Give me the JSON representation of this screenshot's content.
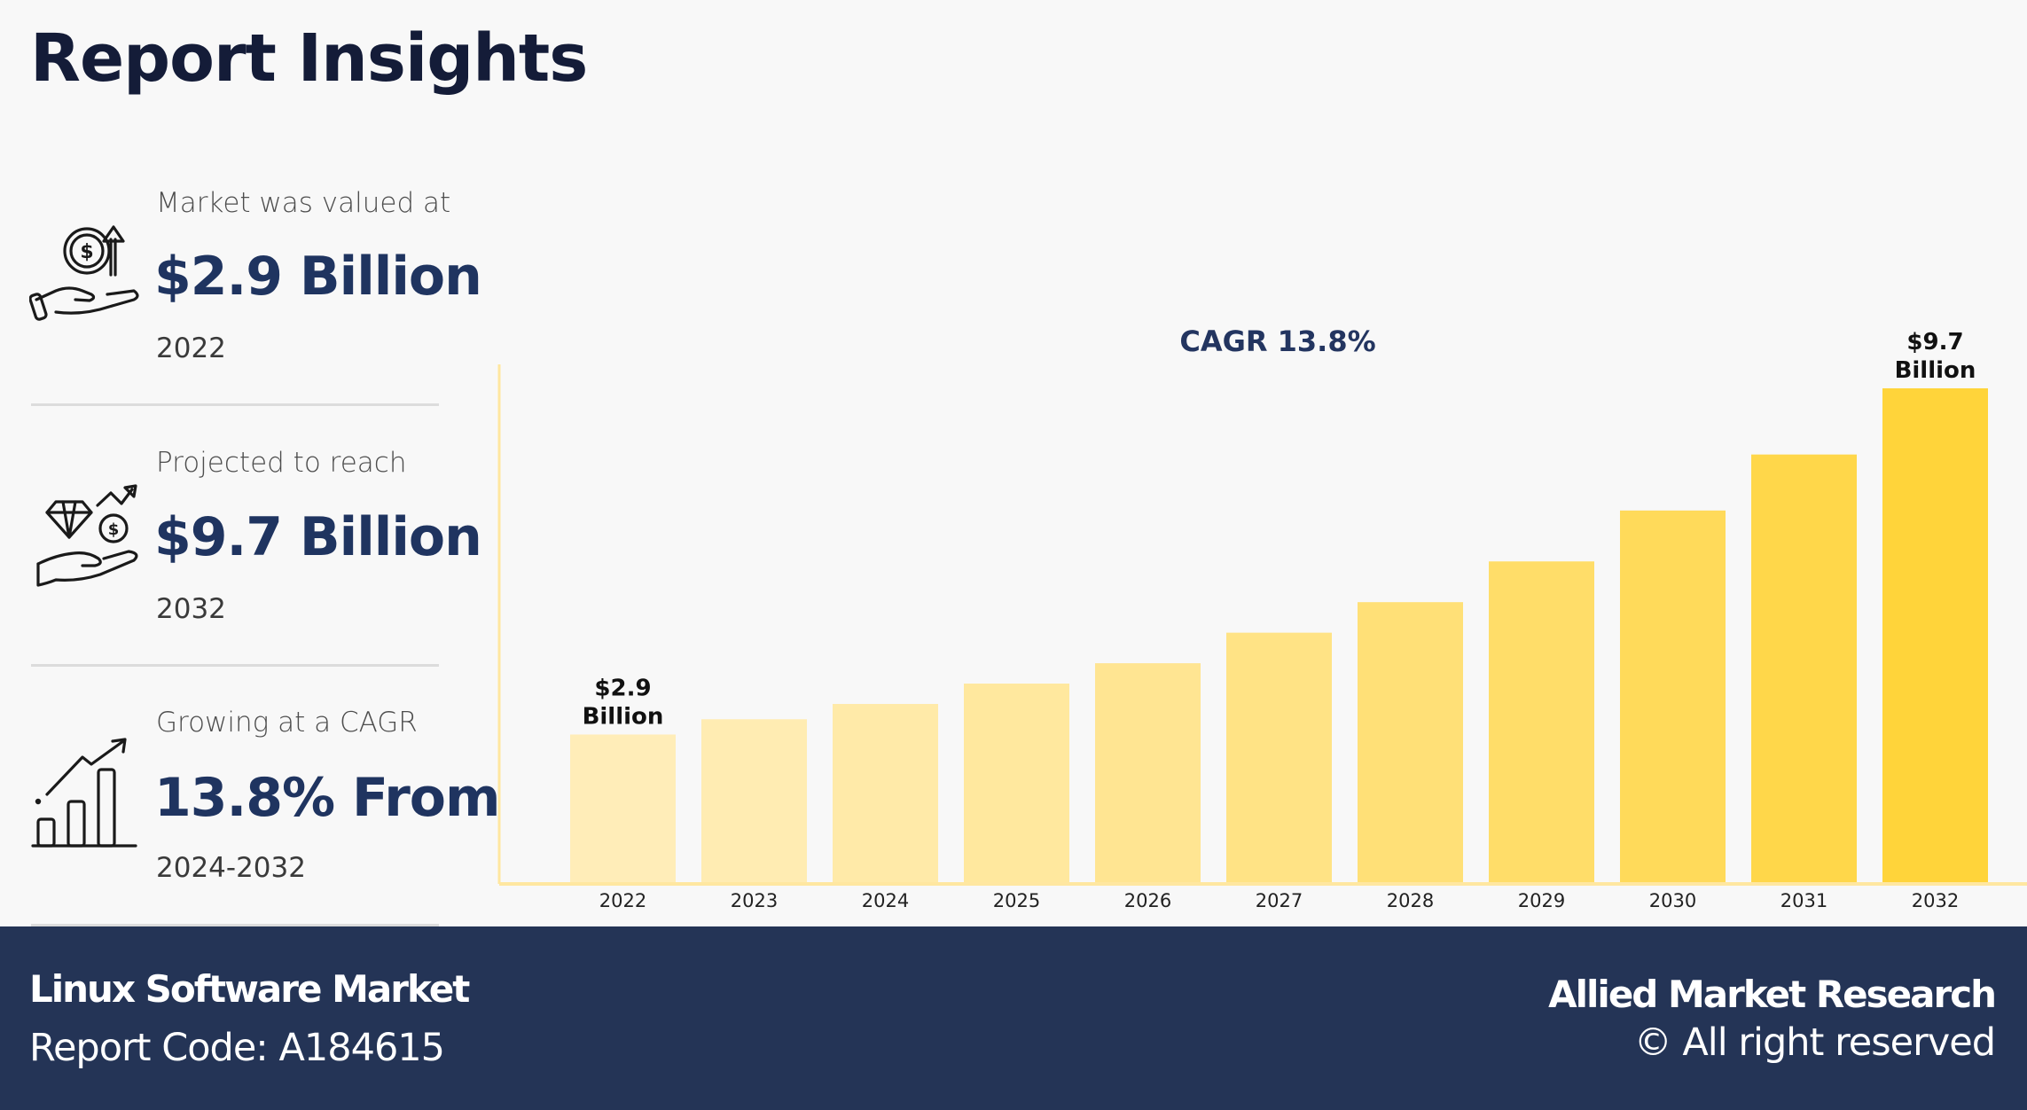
{
  "header": {
    "title": "Report Insights"
  },
  "stats": [
    {
      "icon": "hand-coin-growth-icon",
      "label": "Market was valued at",
      "value": "$2.9 Billion",
      "sub": "2022"
    },
    {
      "icon": "hand-diamond-coin-icon",
      "label": "Projected to reach",
      "value": "$9.7 Billion",
      "sub": "2032"
    },
    {
      "icon": "growth-bar-chart-icon",
      "label": "Growing at a CAGR",
      "value": "13.8% From",
      "sub": "2024-2032"
    }
  ],
  "footer": {
    "market_name": "Linux Software Market",
    "report_code": "Report Code: A184615",
    "brand": "Allied Market Research",
    "rights": "© All right reserved"
  },
  "colors": {
    "bar_light": "#FFEDB8",
    "bar_dark": "#FFD43A",
    "axis": "#FFE7A0",
    "title_text": "#141c38",
    "value_text": "#1f3460",
    "footer_bg": "#243456"
  },
  "chart_data": {
    "type": "bar",
    "title": "CAGR 13.8%",
    "xlabel": "",
    "ylabel": "",
    "categories": [
      "2022",
      "2023",
      "2024",
      "2025",
      "2026",
      "2027",
      "2028",
      "2029",
      "2030",
      "2031",
      "2032"
    ],
    "values": [
      2.9,
      3.2,
      3.5,
      3.9,
      4.3,
      4.9,
      5.5,
      6.3,
      7.3,
      8.4,
      9.7
    ],
    "units": "$ Billion",
    "ylim": [
      0,
      9.7
    ],
    "grid": false,
    "legend": "none",
    "data_labels": [
      {
        "category": "2022",
        "line1": "$2.9",
        "line2": "Billion"
      },
      {
        "category": "2032",
        "line1": "$9.7",
        "line2": "Billion"
      }
    ]
  }
}
